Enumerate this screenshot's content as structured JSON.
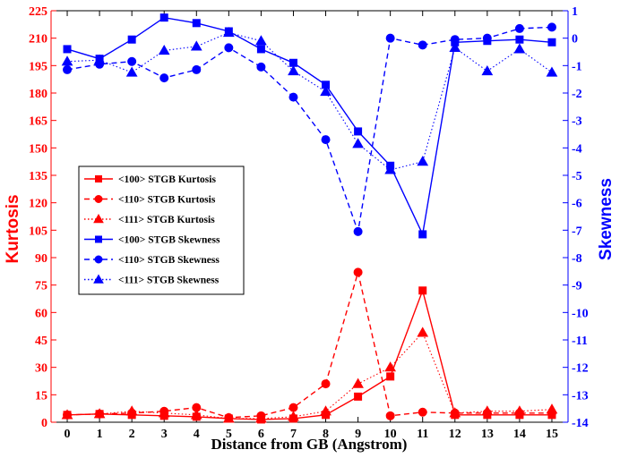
{
  "chart_data": {
    "type": "line",
    "xlabel": "Distance from GB (Angstrom)",
    "ylabel_left": "Kurtosis",
    "ylabel_right": "Skewness",
    "x": [
      0,
      1,
      2,
      3,
      4,
      5,
      6,
      7,
      8,
      9,
      10,
      11,
      12,
      13,
      14,
      15
    ],
    "x_ticks": [
      "0",
      "1",
      "2",
      "3",
      "4",
      "5",
      "6",
      "7",
      "8",
      "9",
      "10",
      "11",
      "12",
      "13",
      "14",
      "15"
    ],
    "xlim": [
      -0.5,
      15.5
    ],
    "ylim_left": [
      0,
      225
    ],
    "ylim_right": [
      -14,
      1
    ],
    "left_ticks": [
      "0",
      "15",
      "30",
      "45",
      "60",
      "75",
      "90",
      "105",
      "120",
      "135",
      "150",
      "165",
      "180",
      "195",
      "210",
      "225"
    ],
    "right_ticks": [
      "1",
      "0",
      "-1",
      "-2",
      "-3",
      "-4",
      "-5",
      "-6",
      "-7",
      "-8",
      "-9",
      "-10",
      "-11",
      "-12",
      "-13",
      "-14"
    ],
    "colors": {
      "left_axis": "#ff0000",
      "right_axis": "#0000ff"
    },
    "series": [
      {
        "name": "<100> STGB Kurtosis",
        "axis": "left",
        "color": "#ff0000",
        "linestyle": "solid",
        "marker": "square",
        "values": [
          4,
          4.5,
          4,
          3.5,
          3,
          2,
          1.5,
          2,
          4,
          14,
          25,
          72,
          4,
          4,
          4,
          4
        ]
      },
      {
        "name": "<110> STGB Kurtosis",
        "axis": "left",
        "color": "#ff0000",
        "linestyle": "dashed",
        "marker": "circle",
        "values": [
          4,
          4.5,
          5,
          6,
          8,
          2.5,
          3.5,
          8,
          21,
          82,
          3.5,
          5.5,
          5,
          5,
          5,
          5
        ]
      },
      {
        "name": "<111> STGB Kurtosis",
        "axis": "left",
        "color": "#ff0000",
        "linestyle": "dotted",
        "marker": "triangle",
        "values": [
          4,
          4.5,
          6,
          5,
          4,
          2,
          2,
          3,
          6,
          21,
          30,
          49,
          5,
          6,
          6,
          7
        ]
      },
      {
        "name": "<100> STGB Skewness",
        "axis": "right",
        "color": "#0000ff",
        "linestyle": "solid",
        "marker": "square",
        "values": [
          -0.4,
          -0.75,
          -0.05,
          0.75,
          0.55,
          0.25,
          -0.4,
          -0.9,
          -1.7,
          -3.4,
          -4.65,
          -7.15,
          -0.15,
          -0.1,
          -0.05,
          -0.15
        ]
      },
      {
        "name": "<110> STGB Skewness",
        "axis": "right",
        "color": "#0000ff",
        "linestyle": "dashed",
        "marker": "circle",
        "values": [
          -1.15,
          -0.95,
          -0.85,
          -1.45,
          -1.15,
          -0.35,
          -1.05,
          -2.15,
          -3.7,
          -7.05,
          0.0,
          -0.25,
          -0.05,
          0.0,
          0.35,
          0.4
        ]
      },
      {
        "name": "<111> STGB Skewness",
        "axis": "right",
        "color": "#0000ff",
        "linestyle": "dotted",
        "marker": "triangle",
        "values": [
          -0.85,
          -0.8,
          -1.25,
          -0.45,
          -0.3,
          0.2,
          -0.1,
          -1.2,
          -1.95,
          -3.85,
          -4.8,
          -4.5,
          -0.35,
          -1.2,
          -0.4,
          -1.25
        ]
      }
    ],
    "legend_position": "center-left"
  }
}
